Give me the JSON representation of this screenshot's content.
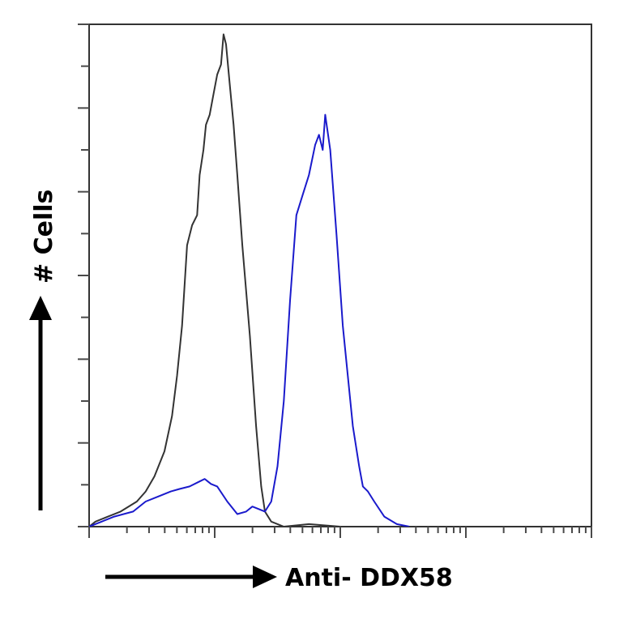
{
  "chart_data": {
    "type": "line",
    "title": "",
    "xlabel": "Anti- DDX58",
    "ylabel": "# Cells",
    "x_scale": "log",
    "xlim": [
      0,
      4
    ],
    "ylim": [
      0,
      100
    ],
    "grid": false,
    "legend": "none",
    "series": [
      {
        "color": "#333333",
        "points": [
          [
            0.0,
            0
          ],
          [
            0.05,
            1
          ],
          [
            0.15,
            2
          ],
          [
            0.25,
            3
          ],
          [
            0.38,
            5
          ],
          [
            0.45,
            7
          ],
          [
            0.52,
            10
          ],
          [
            0.6,
            15
          ],
          [
            0.66,
            22
          ],
          [
            0.7,
            30
          ],
          [
            0.74,
            40
          ],
          [
            0.78,
            56
          ],
          [
            0.82,
            60
          ],
          [
            0.86,
            62
          ],
          [
            0.88,
            70
          ],
          [
            0.91,
            75
          ],
          [
            0.93,
            80
          ],
          [
            0.96,
            82
          ],
          [
            0.99,
            86
          ],
          [
            1.02,
            90
          ],
          [
            1.05,
            92
          ],
          [
            1.07,
            98
          ],
          [
            1.09,
            96
          ],
          [
            1.12,
            88
          ],
          [
            1.15,
            80
          ],
          [
            1.18,
            70
          ],
          [
            1.22,
            56
          ],
          [
            1.28,
            38
          ],
          [
            1.33,
            20
          ],
          [
            1.37,
            8
          ],
          [
            1.4,
            3
          ],
          [
            1.45,
            1
          ],
          [
            1.55,
            0
          ],
          [
            1.75,
            0.5
          ],
          [
            2.0,
            0
          ]
        ]
      },
      {
        "color": "#1a1acc",
        "points": [
          [
            0.0,
            0
          ],
          [
            0.1,
            1
          ],
          [
            0.2,
            2
          ],
          [
            0.35,
            3
          ],
          [
            0.45,
            5
          ],
          [
            0.55,
            6
          ],
          [
            0.65,
            7
          ],
          [
            0.72,
            7.5
          ],
          [
            0.8,
            8
          ],
          [
            0.88,
            9
          ],
          [
            0.92,
            9.5
          ],
          [
            0.97,
            8.5
          ],
          [
            1.02,
            8
          ],
          [
            1.1,
            5
          ],
          [
            1.18,
            2.5
          ],
          [
            1.25,
            3
          ],
          [
            1.3,
            4
          ],
          [
            1.35,
            3.5
          ],
          [
            1.4,
            3
          ],
          [
            1.45,
            5
          ],
          [
            1.5,
            12
          ],
          [
            1.55,
            25
          ],
          [
            1.6,
            45
          ],
          [
            1.65,
            62
          ],
          [
            1.7,
            66
          ],
          [
            1.75,
            70
          ],
          [
            1.8,
            76
          ],
          [
            1.83,
            78
          ],
          [
            1.86,
            75
          ],
          [
            1.88,
            82
          ],
          [
            1.92,
            75
          ],
          [
            1.97,
            58
          ],
          [
            2.02,
            40
          ],
          [
            2.06,
            30
          ],
          [
            2.1,
            20
          ],
          [
            2.15,
            12
          ],
          [
            2.18,
            8
          ],
          [
            2.22,
            7
          ],
          [
            2.27,
            5
          ],
          [
            2.35,
            2
          ],
          [
            2.45,
            0.5
          ],
          [
            2.55,
            0
          ]
        ]
      }
    ]
  }
}
